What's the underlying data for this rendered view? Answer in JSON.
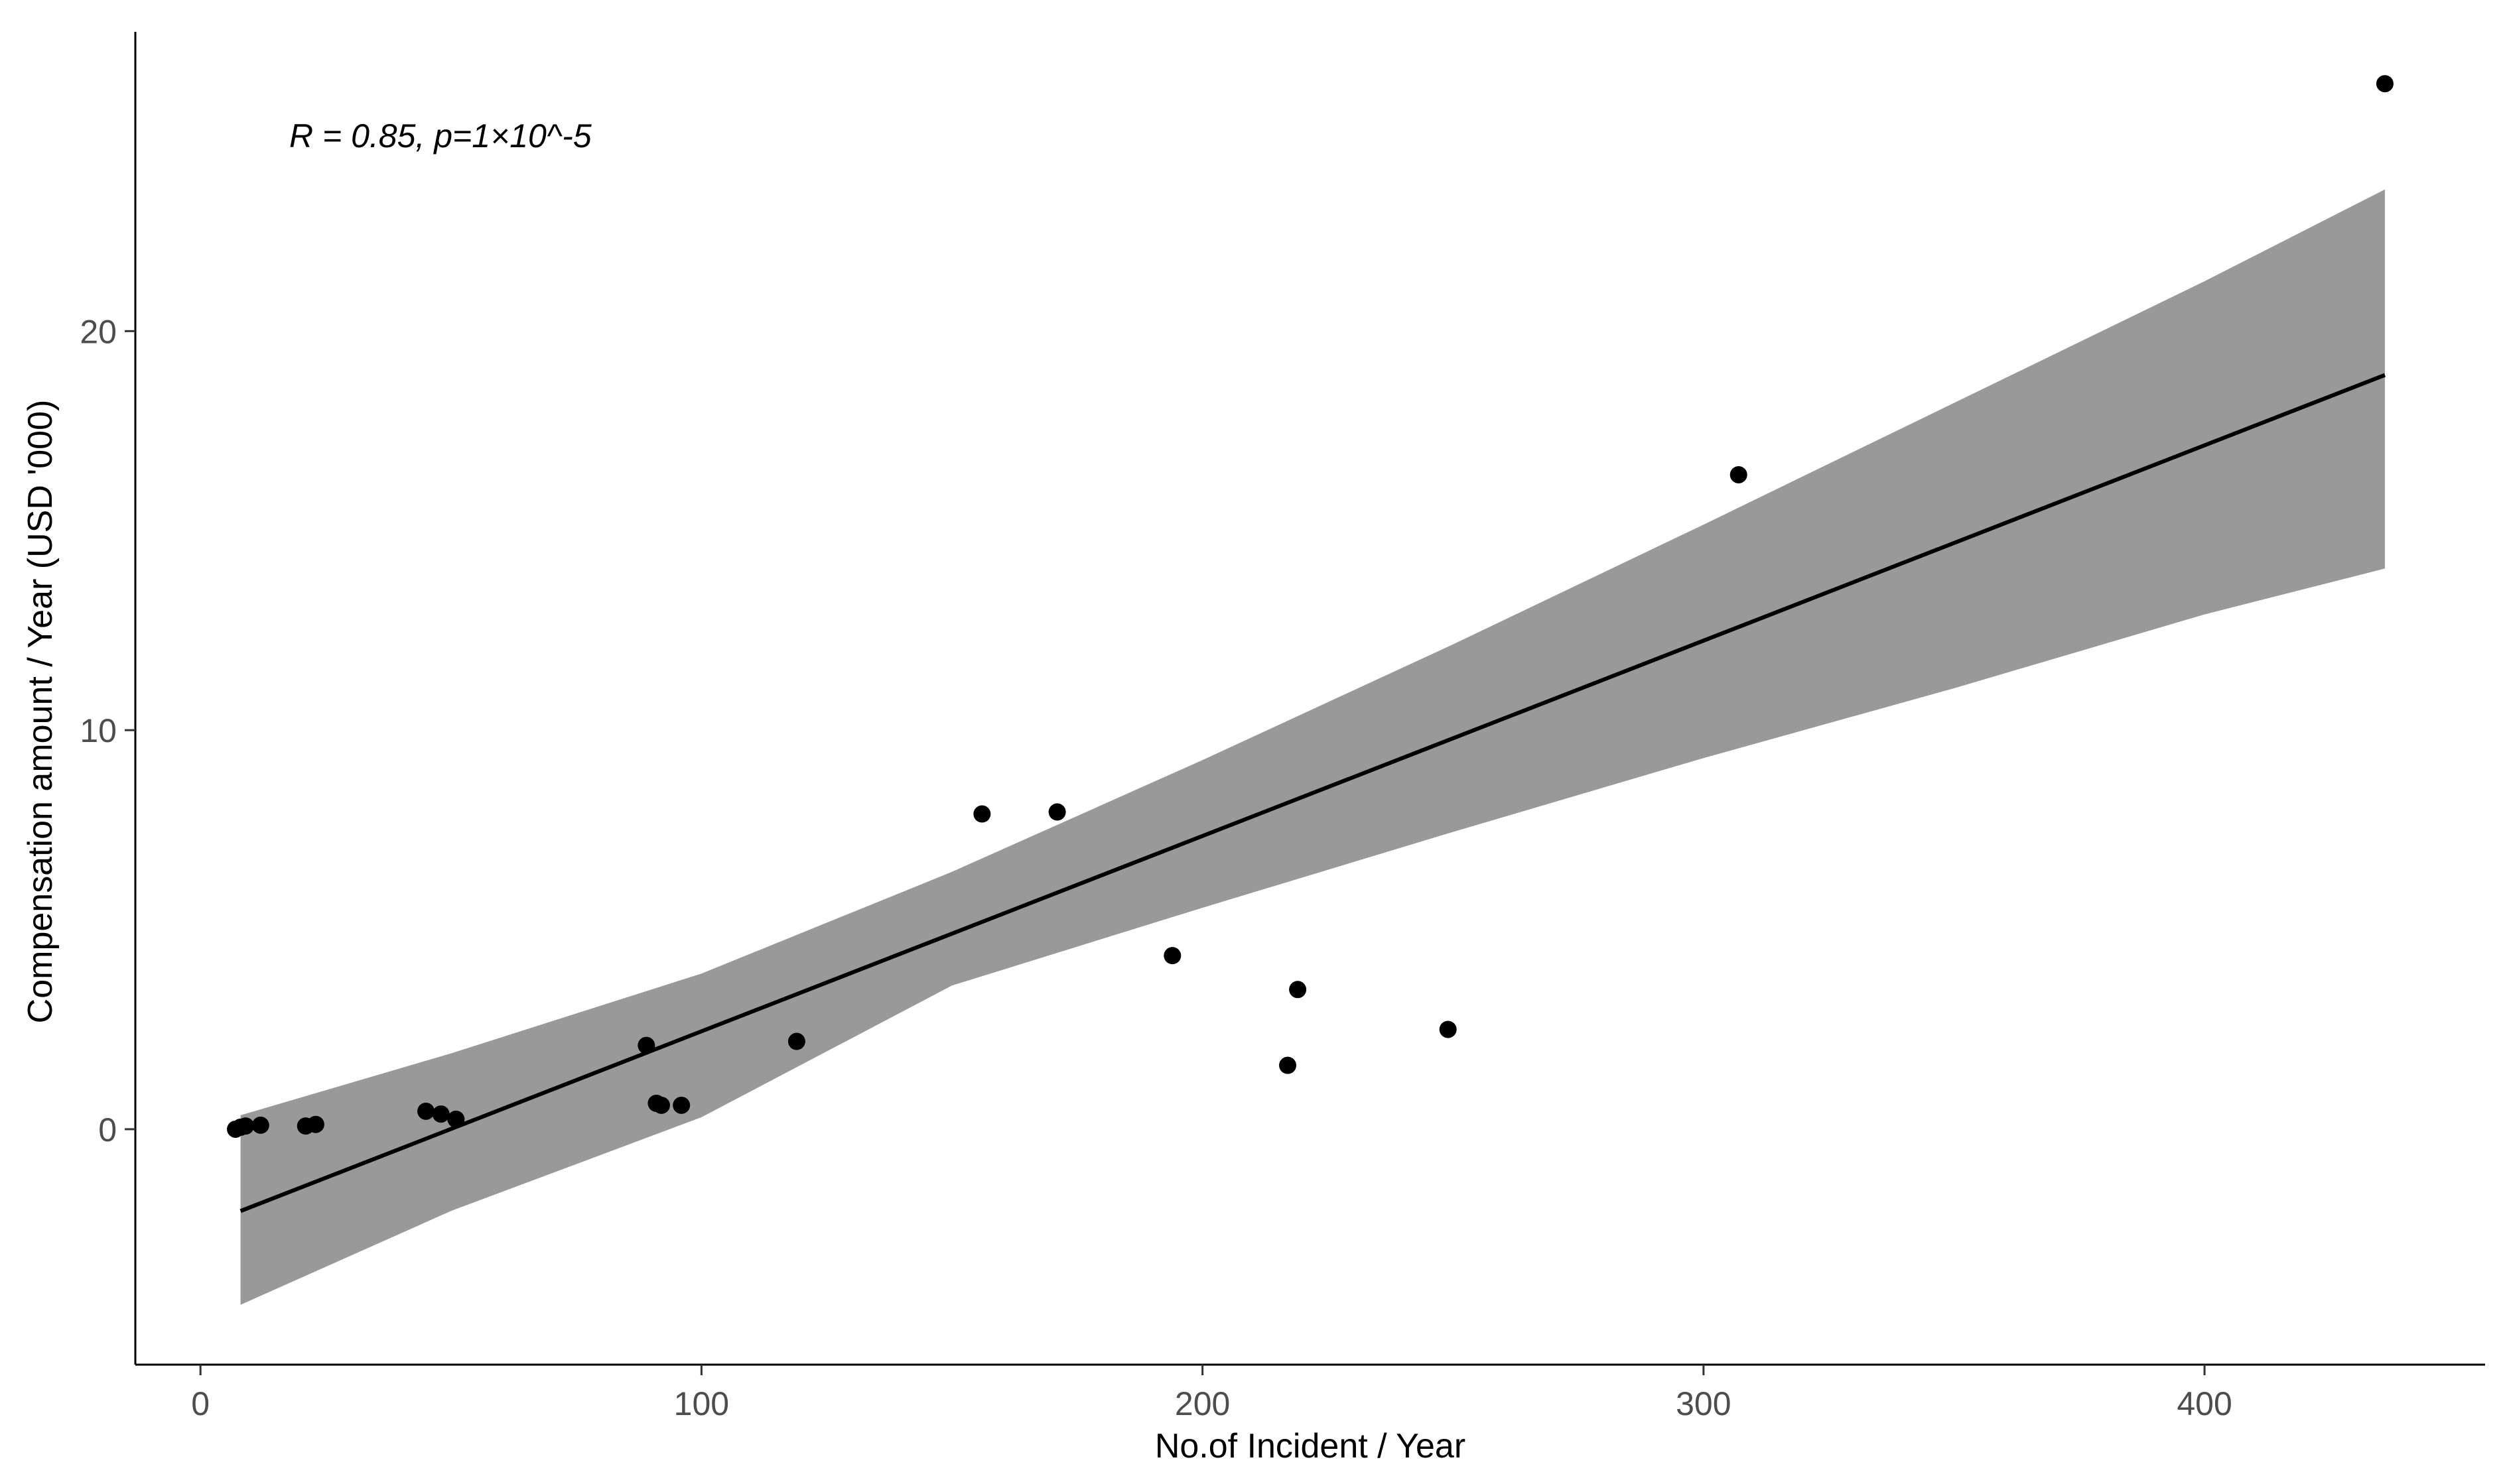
{
  "chart_data": {
    "type": "scatter",
    "title": "",
    "xlabel": "No.of Incident / Year",
    "ylabel": "Compensation amount / Year (USD '000)",
    "xlim": [
      -13,
      456
    ],
    "ylim": [
      -5.9,
      27.5
    ],
    "x_ticks": [
      0,
      100,
      200,
      300,
      400
    ],
    "y_ticks": [
      0,
      10,
      20
    ],
    "grid": false,
    "legend": "none",
    "annotation": "R = 0.85, p=1×10^-5",
    "points": [
      {
        "x": 7,
        "y": 0.0
      },
      {
        "x": 8,
        "y": 0.05
      },
      {
        "x": 9,
        "y": 0.08
      },
      {
        "x": 12,
        "y": 0.1
      },
      {
        "x": 21,
        "y": 0.08
      },
      {
        "x": 23,
        "y": 0.12
      },
      {
        "x": 45,
        "y": 0.45
      },
      {
        "x": 48,
        "y": 0.38
      },
      {
        "x": 51,
        "y": 0.25
      },
      {
        "x": 89,
        "y": 2.1
      },
      {
        "x": 91,
        "y": 0.65
      },
      {
        "x": 92,
        "y": 0.6
      },
      {
        "x": 96,
        "y": 0.6
      },
      {
        "x": 119,
        "y": 2.2
      },
      {
        "x": 156,
        "y": 7.9
      },
      {
        "x": 171,
        "y": 7.95
      },
      {
        "x": 194,
        "y": 4.35
      },
      {
        "x": 217,
        "y": 1.6
      },
      {
        "x": 219,
        "y": 3.5
      },
      {
        "x": 249,
        "y": 2.5
      },
      {
        "x": 307,
        "y": 16.4
      },
      {
        "x": 436,
        "y": 26.2
      }
    ],
    "fit_line": {
      "x": [
        8,
        436
      ],
      "y": [
        -2.05,
        18.9
      ]
    },
    "confidence_band": {
      "x": [
        8,
        50,
        100,
        150,
        200,
        250,
        300,
        350,
        400,
        436
      ],
      "upper": [
        0.35,
        1.9,
        3.9,
        6.45,
        9.25,
        12.15,
        15.15,
        18.2,
        21.25,
        23.55
      ],
      "lower": [
        -4.4,
        -2.05,
        0.3,
        3.6,
        5.55,
        7.45,
        9.3,
        11.05,
        12.9,
        14.05
      ]
    },
    "colors": {
      "points": "#000000",
      "line": "#000000",
      "band": "#999999",
      "axis": "#000000"
    }
  }
}
